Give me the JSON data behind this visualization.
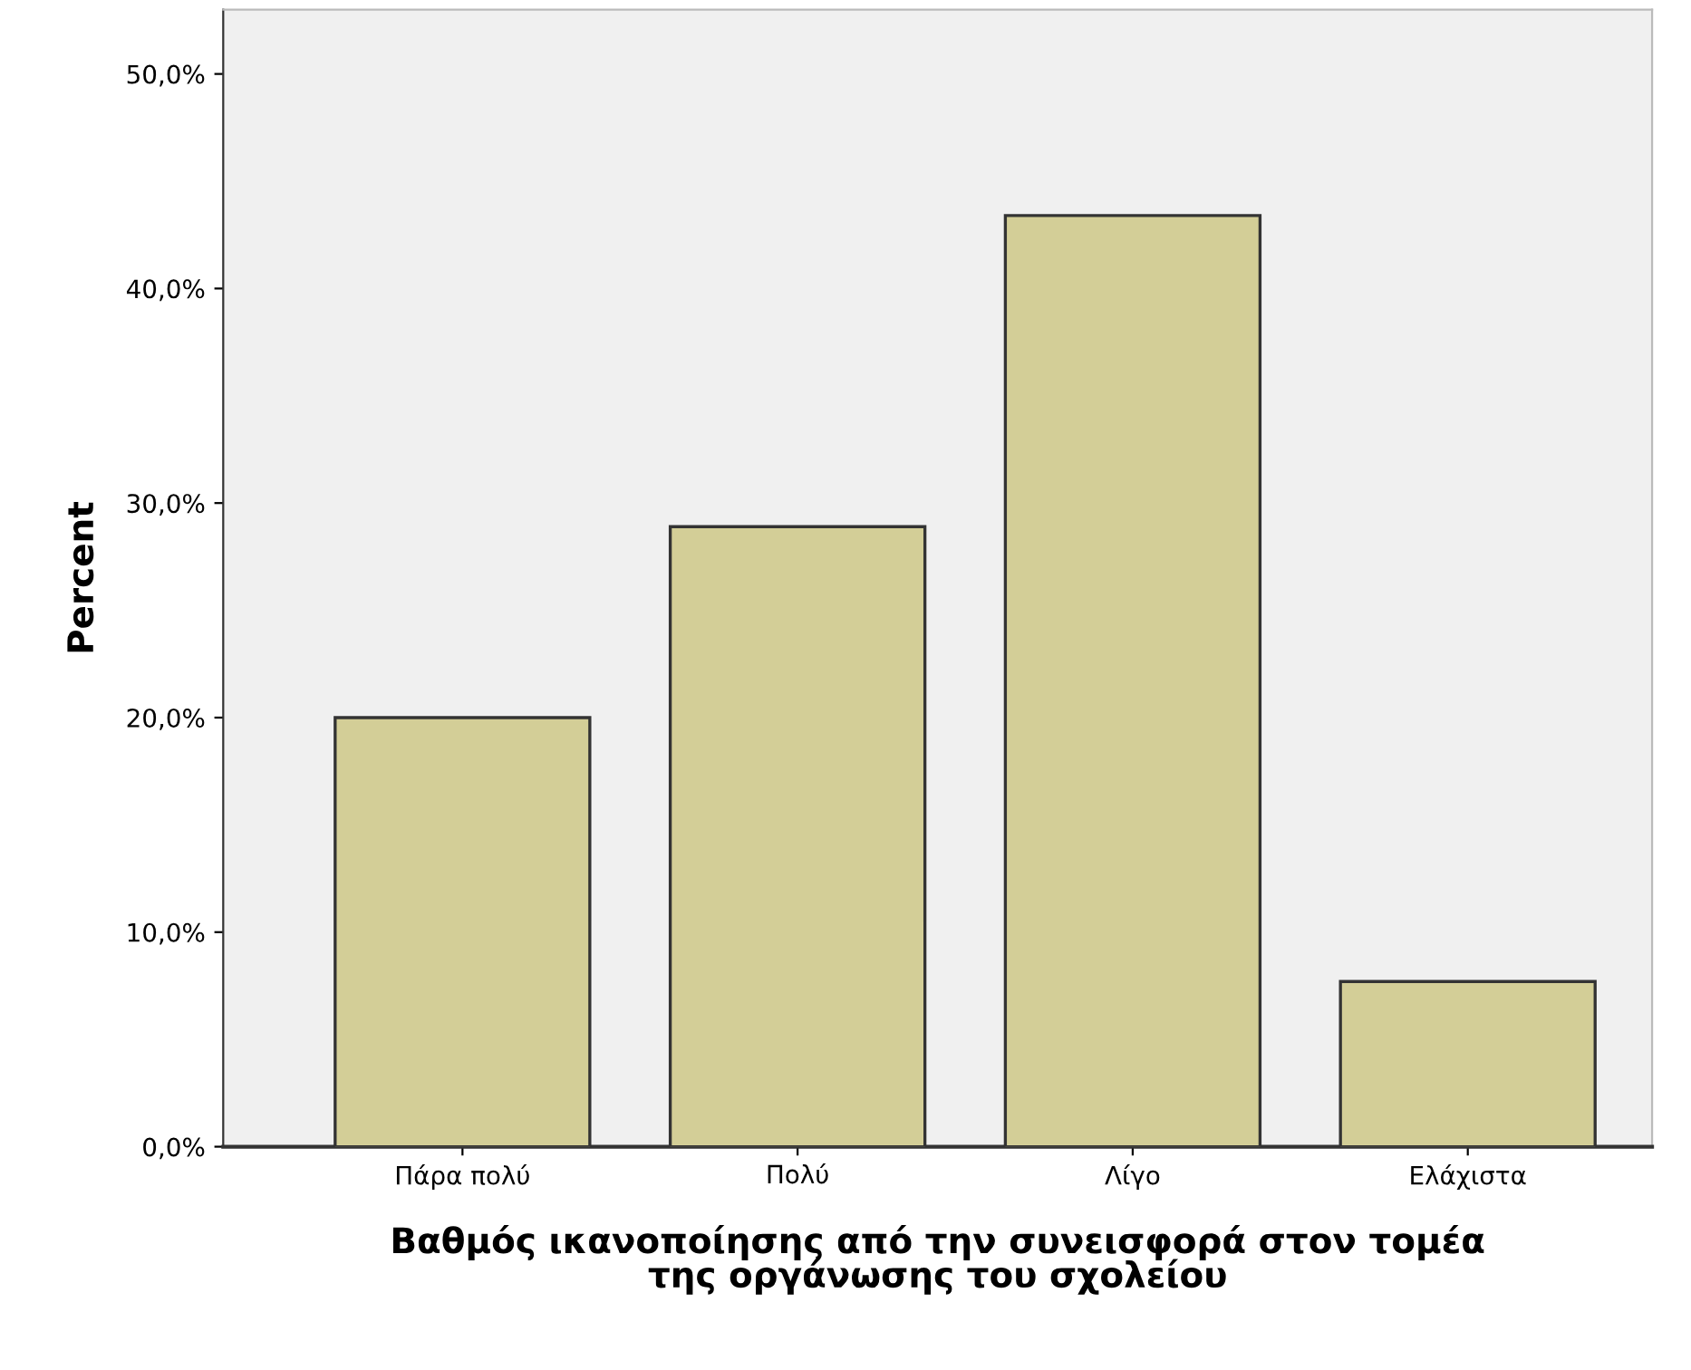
{
  "chart_data": {
    "type": "bar",
    "xlabel": "Βαθμός ικανοποίησης από την συνεισφορά στον τομέα\nτης οργάνωσης του σχολείου",
    "ylabel": "Percent",
    "categories": [
      "Πάρα πολύ",
      "Πολύ",
      "Λίγο",
      "Ελάχιστα"
    ],
    "values": [
      20.0,
      28.9,
      43.4,
      7.7
    ],
    "color": "#d3ce97",
    "ylim": [
      0,
      53
    ],
    "yticks": [
      {
        "value": 0,
        "label": "0,0%"
      },
      {
        "value": 10,
        "label": "10,0%"
      },
      {
        "value": 20,
        "label": "20,0%"
      },
      {
        "value": 30,
        "label": "30,0%"
      },
      {
        "value": 40,
        "label": "40,0%"
      },
      {
        "value": 50,
        "label": "50,0%"
      }
    ],
    "grid": false
  }
}
